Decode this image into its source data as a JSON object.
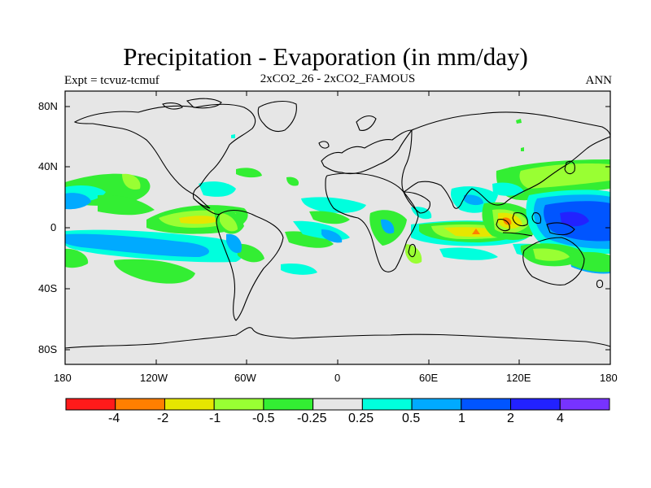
{
  "title": "Precipitation - Evaporation (in mm/day)",
  "subtitle_left": "Expt = tcvuz-tcmuf",
  "subtitle_center": "2xCO2_26 - 2xCO2_FAMOUS",
  "subtitle_right": "ANN",
  "lat_ticks": [
    "80N",
    "40N",
    "0",
    "40S",
    "80S"
  ],
  "lon_ticks": [
    "180",
    "120W",
    "60W",
    "0",
    "60E",
    "120E",
    "180"
  ],
  "colorbar": {
    "colors": [
      "#ff1a1a",
      "#ff7f00",
      "#e6e600",
      "#99ff33",
      "#33ee33",
      "#e6e6e6",
      "#00ffdd",
      "#00aaff",
      "#0055ff",
      "#2222ff",
      "#7733ff"
    ],
    "labels": [
      "-4",
      "-2",
      "-1",
      "-0.5",
      "-0.25",
      "0.25",
      "0.5",
      "1",
      "2",
      "4"
    ]
  },
  "map_background": "#e6e6e6",
  "chart_data": {
    "type": "heatmap",
    "variable": "Precipitation - Evaporation",
    "units": "mm/day",
    "lon_range": [
      -180,
      180
    ],
    "lat_range": [
      -90,
      90
    ]
  }
}
